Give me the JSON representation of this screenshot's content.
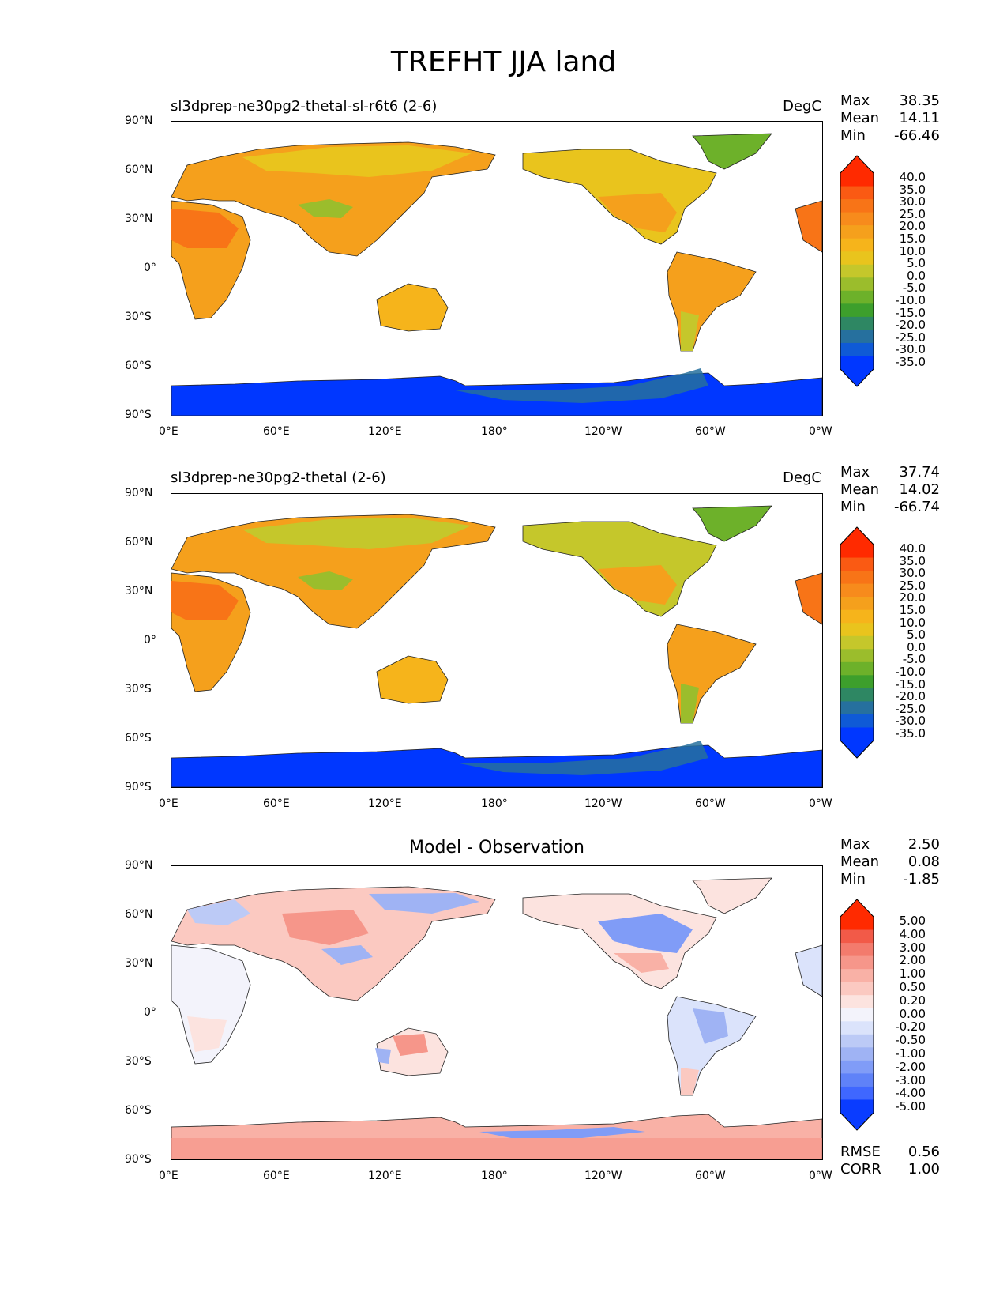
{
  "title": "TREFHT JJA land",
  "lat_ticks": [
    "90°N",
    "60°N",
    "30°N",
    "0°",
    "30°S",
    "60°S",
    "90°S"
  ],
  "lon_ticks": [
    "0°E",
    "60°E",
    "120°E",
    "180°",
    "120°W",
    "60°W",
    "0°W"
  ],
  "colors": {
    "abs_scale": [
      "#0037ff",
      "#0f5ad6",
      "#26709e",
      "#2e8763",
      "#3d9f2c",
      "#6db12a",
      "#9bbd2c",
      "#c5c72b",
      "#e9c41d",
      "#f6b41b",
      "#f5a01c",
      "#f78b1c",
      "#f87417",
      "#fa5a13",
      "#ff2a00"
    ],
    "diff_scale": [
      "#0a3cff",
      "#3f67ff",
      "#5f82f8",
      "#809cf7",
      "#9fb3f4",
      "#bccaf6",
      "#dbe3fb",
      "#f3f3fb",
      "#fce3df",
      "#fbc9c1",
      "#f9b1a6",
      "#f6968a",
      "#f37b6d",
      "#f25a48",
      "#ff2a00"
    ],
    "coast": "#222222"
  },
  "panels": [
    {
      "title": "sl3dprep-ne30pg2-thetal-sl-r6t6 (2-6)",
      "units": "DegC",
      "stats": [
        {
          "label": "Max",
          "value": "38.35"
        },
        {
          "label": "Mean",
          "value": "14.11"
        },
        {
          "label": "Min",
          "value": "-66.46"
        }
      ],
      "colorbar_labels": [
        "40.0",
        "35.0",
        "30.0",
        "25.0",
        "20.0",
        "15.0",
        "10.0",
        "5.0",
        "0.0",
        "-5.0",
        "-10.0",
        "-15.0",
        "-20.0",
        "-25.0",
        "-30.0",
        "-35.0"
      ]
    },
    {
      "title": "sl3dprep-ne30pg2-thetal (2-6)",
      "units": "DegC",
      "stats": [
        {
          "label": "Max",
          "value": "37.74"
        },
        {
          "label": "Mean",
          "value": "14.02"
        },
        {
          "label": "Min",
          "value": "-66.74"
        }
      ],
      "colorbar_labels": [
        "40.0",
        "35.0",
        "30.0",
        "25.0",
        "20.0",
        "15.0",
        "10.0",
        "5.0",
        "0.0",
        "-5.0",
        "-10.0",
        "-15.0",
        "-20.0",
        "-25.0",
        "-30.0",
        "-35.0"
      ]
    },
    {
      "title": "Model - Observation",
      "units": "",
      "stats": [
        {
          "label": "Max",
          "value": "2.50"
        },
        {
          "label": "Mean",
          "value": "0.08"
        },
        {
          "label": "Min",
          "value": "-1.85"
        }
      ],
      "colorbar_labels": [
        "5.00",
        "4.00",
        "3.00",
        "2.00",
        "1.00",
        "0.50",
        "0.20",
        "0.00",
        "-0.20",
        "-0.50",
        "-1.00",
        "-2.00",
        "-3.00",
        "-4.00",
        "-5.00"
      ],
      "extra_stats": [
        {
          "label": "RMSE",
          "value": "0.56"
        },
        {
          "label": "CORR",
          "value": "1.00"
        }
      ]
    }
  ]
}
